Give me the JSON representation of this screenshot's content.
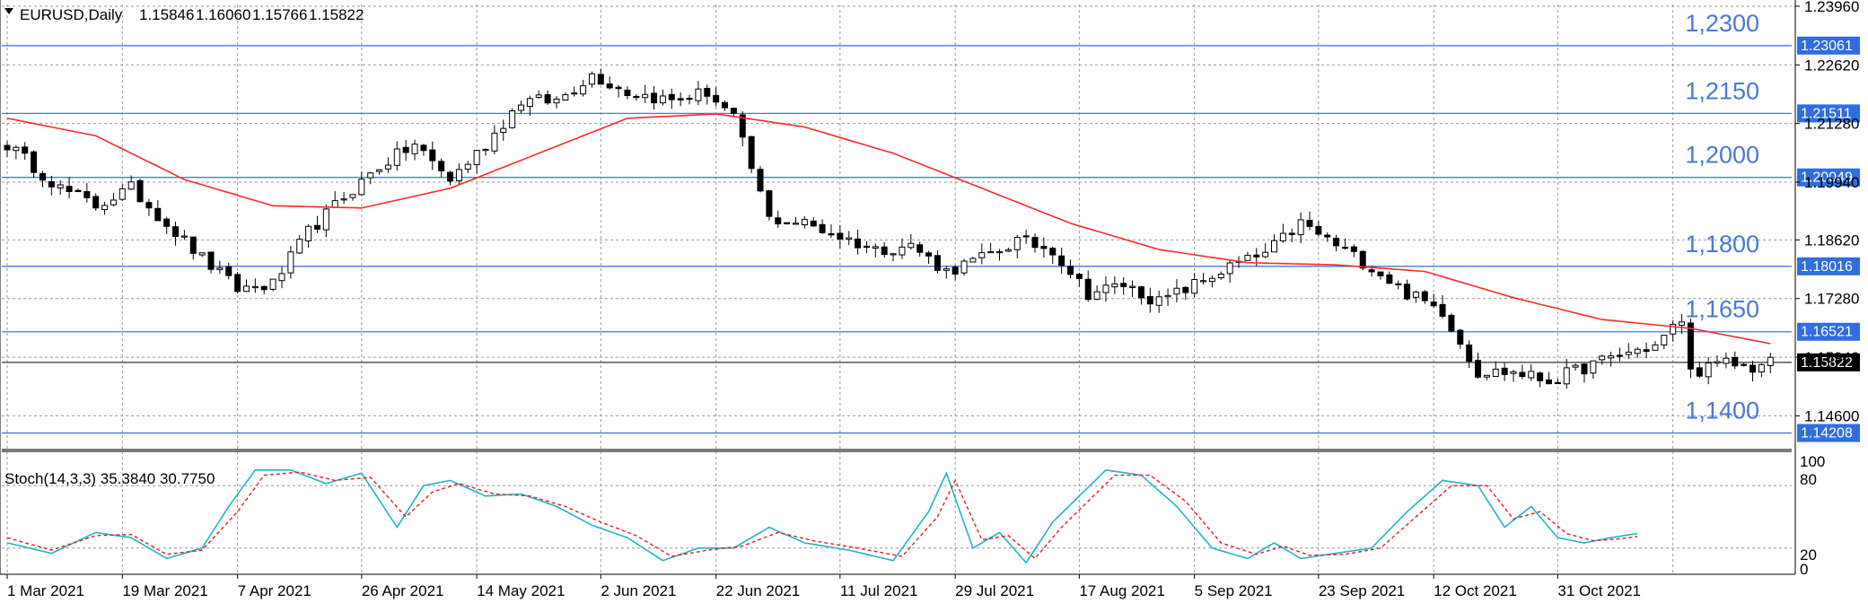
{
  "header": {
    "symbol": "EURUSD,Daily",
    "open": "1.15846",
    "high": "1.16060",
    "low": "1.15766",
    "close": "1.15822"
  },
  "indicator": {
    "label": "Stoch(14,3,3) 35.3840 30.7750",
    "scale": [
      "100",
      "80",
      "20",
      "0"
    ]
  },
  "colors": {
    "bull_candle": "#ffffff",
    "bear_candle": "#000000",
    "ma_line": "#ff2a2a",
    "level_line": "#4a78d8",
    "level_tag": "#2f6de0",
    "stoch_main": "#22b5c8",
    "stoch_signal": "#e02020",
    "grid": "#9a9a9a"
  },
  "chart_data": [
    {
      "type": "candlestick",
      "title": "EURUSD,Daily",
      "ylim": [
        1.1385,
        1.24
      ],
      "price_axis_ticks": [
        "1.23960",
        "1.22620",
        "1.21280",
        "1.19940",
        "1.18620",
        "1.17280",
        "1.15940",
        "1.14600"
      ],
      "x_tick_labels": [
        "1 Mar 2021",
        "19 Mar 2021",
        "7 Apr 2021",
        "26 Apr 2021",
        "14 May 2021",
        "2 Jun 2021",
        "22 Jun 2021",
        "11 Jul 2021",
        "29 Jul 2021",
        "17 Aug 2021",
        "5 Sep 2021",
        "23 Sep 2021",
        "12 Oct 2021",
        "31 Oct 2021"
      ],
      "level_labels": [
        "1,2300",
        "1,2150",
        "1,2000",
        "1,1800",
        "1,1650",
        "1,1400"
      ],
      "levels": [
        {
          "price": 1.23061,
          "tag": "1.23061"
        },
        {
          "price": 1.21511,
          "tag": "1.21511"
        },
        {
          "price": 1.20049,
          "tag": "1.20049"
        },
        {
          "price": 1.18016,
          "tag": "1.18016"
        },
        {
          "price": 1.16521,
          "tag": "1.16521"
        },
        {
          "price": 1.14208,
          "tag": "1.14208"
        }
      ],
      "current_price": {
        "price": 1.15822,
        "tag": "1.15822"
      },
      "close_anchors": [
        [
          0,
          1.208
        ],
        [
          6,
          1.198
        ],
        [
          10,
          1.194
        ],
        [
          14,
          1.198
        ],
        [
          18,
          1.19
        ],
        [
          22,
          1.182
        ],
        [
          26,
          1.175
        ],
        [
          30,
          1.176
        ],
        [
          34,
          1.188
        ],
        [
          38,
          1.196
        ],
        [
          42,
          1.203
        ],
        [
          46,
          1.208
        ],
        [
          50,
          1.2
        ],
        [
          54,
          1.208
        ],
        [
          58,
          1.218
        ],
        [
          62,
          1.218
        ],
        [
          66,
          1.224
        ],
        [
          70,
          1.22
        ],
        [
          75,
          1.218
        ],
        [
          79,
          1.22
        ],
        [
          82,
          1.214
        ],
        [
          86,
          1.191
        ],
        [
          90,
          1.19
        ],
        [
          94,
          1.187
        ],
        [
          98,
          1.184
        ],
        [
          102,
          1.185
        ],
        [
          106,
          1.179
        ],
        [
          110,
          1.182
        ],
        [
          114,
          1.186
        ],
        [
          118,
          1.184
        ],
        [
          122,
          1.174
        ],
        [
          126,
          1.176
        ],
        [
          130,
          1.172
        ],
        [
          134,
          1.176
        ],
        [
          138,
          1.18
        ],
        [
          142,
          1.183
        ],
        [
          146,
          1.19
        ],
        [
          150,
          1.185
        ],
        [
          154,
          1.18
        ],
        [
          158,
          1.174
        ],
        [
          162,
          1.17
        ],
        [
          166,
          1.156
        ],
        [
          170,
          1.156
        ],
        [
          174,
          1.154
        ],
        [
          178,
          1.157
        ],
        [
          182,
          1.16
        ],
        [
          186,
          1.162
        ],
        [
          189,
          1.168
        ],
        [
          190,
          1.156
        ],
        [
          194,
          1.158
        ],
        [
          197,
          1.157
        ],
        [
          199,
          1.1582
        ]
      ],
      "ma_anchors": [
        [
          0,
          1.214
        ],
        [
          10,
          1.21
        ],
        [
          20,
          1.2
        ],
        [
          30,
          1.194
        ],
        [
          40,
          1.1935
        ],
        [
          50,
          1.198
        ],
        [
          60,
          1.206
        ],
        [
          70,
          1.214
        ],
        [
          80,
          1.215
        ],
        [
          90,
          1.212
        ],
        [
          100,
          1.206
        ],
        [
          110,
          1.198
        ],
        [
          120,
          1.19
        ],
        [
          130,
          1.184
        ],
        [
          140,
          1.181
        ],
        [
          150,
          1.1805
        ],
        [
          160,
          1.179
        ],
        [
          170,
          1.173
        ],
        [
          180,
          1.168
        ],
        [
          190,
          1.166
        ],
        [
          199,
          1.1625
        ]
      ],
      "stochastic": {
        "ylim": [
          0,
          100
        ],
        "levels": [
          20,
          80
        ],
        "k_anchors": [
          [
            0,
            25
          ],
          [
            5,
            15
          ],
          [
            10,
            35
          ],
          [
            14,
            30
          ],
          [
            18,
            10
          ],
          [
            22,
            20
          ],
          [
            25,
            60
          ],
          [
            28,
            95
          ],
          [
            32,
            95
          ],
          [
            36,
            82
          ],
          [
            40,
            92
          ],
          [
            44,
            40
          ],
          [
            47,
            80
          ],
          [
            50,
            85
          ],
          [
            54,
            70
          ],
          [
            58,
            72
          ],
          [
            62,
            60
          ],
          [
            66,
            42
          ],
          [
            70,
            30
          ],
          [
            74,
            8
          ],
          [
            78,
            20
          ],
          [
            82,
            20
          ],
          [
            86,
            40
          ],
          [
            90,
            25
          ],
          [
            95,
            18
          ],
          [
            100,
            8
          ],
          [
            104,
            55
          ],
          [
            106,
            92
          ],
          [
            109,
            20
          ],
          [
            112,
            35
          ],
          [
            115,
            6
          ],
          [
            118,
            45
          ],
          [
            121,
            70
          ],
          [
            124,
            95
          ],
          [
            128,
            90
          ],
          [
            132,
            60
          ],
          [
            136,
            20
          ],
          [
            140,
            10
          ],
          [
            143,
            25
          ],
          [
            146,
            10
          ],
          [
            150,
            15
          ],
          [
            154,
            20
          ],
          [
            158,
            55
          ],
          [
            162,
            85
          ],
          [
            166,
            80
          ],
          [
            169,
            40
          ],
          [
            172,
            60
          ],
          [
            175,
            30
          ],
          [
            178,
            25
          ],
          [
            181,
            30
          ],
          [
            184,
            34
          ]
        ],
        "d_anchors": [
          [
            0,
            30
          ],
          [
            5,
            18
          ],
          [
            10,
            32
          ],
          [
            14,
            33
          ],
          [
            18,
            14
          ],
          [
            22,
            18
          ],
          [
            26,
            55
          ],
          [
            29,
            90
          ],
          [
            33,
            93
          ],
          [
            37,
            85
          ],
          [
            41,
            88
          ],
          [
            45,
            50
          ],
          [
            48,
            74
          ],
          [
            51,
            82
          ],
          [
            55,
            72
          ],
          [
            59,
            70
          ],
          [
            63,
            60
          ],
          [
            67,
            45
          ],
          [
            71,
            32
          ],
          [
            75,
            12
          ],
          [
            79,
            18
          ],
          [
            83,
            22
          ],
          [
            87,
            35
          ],
          [
            91,
            27
          ],
          [
            96,
            20
          ],
          [
            101,
            12
          ],
          [
            105,
            50
          ],
          [
            107,
            85
          ],
          [
            110,
            28
          ],
          [
            113,
            32
          ],
          [
            116,
            10
          ],
          [
            119,
            40
          ],
          [
            122,
            65
          ],
          [
            125,
            90
          ],
          [
            129,
            90
          ],
          [
            133,
            65
          ],
          [
            137,
            25
          ],
          [
            141,
            14
          ],
          [
            144,
            22
          ],
          [
            147,
            13
          ],
          [
            151,
            14
          ],
          [
            155,
            20
          ],
          [
            159,
            50
          ],
          [
            163,
            80
          ],
          [
            167,
            80
          ],
          [
            170,
            48
          ],
          [
            173,
            55
          ],
          [
            176,
            34
          ],
          [
            179,
            27
          ],
          [
            182,
            29
          ],
          [
            184,
            31
          ]
        ]
      }
    }
  ]
}
